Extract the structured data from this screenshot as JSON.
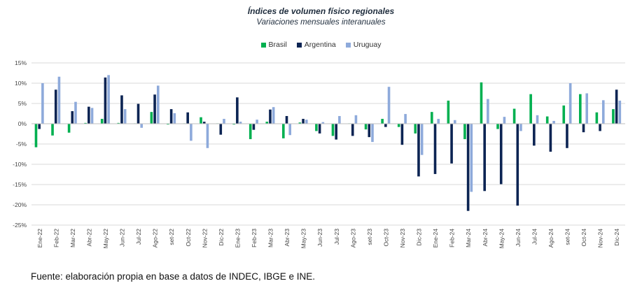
{
  "chart_data": {
    "type": "bar",
    "title": "Índices de volumen físico regionales",
    "subtitle": "Variaciones mensuales interanuales",
    "xlabel": "",
    "ylabel": "",
    "ylim": [
      -25,
      15
    ],
    "yticks": [
      "15%",
      "10%",
      "5%",
      "0%",
      "-5%",
      "-10%",
      "-15%",
      "-20%",
      "-25%"
    ],
    "grid": true,
    "legend": "top-center",
    "categories": [
      "Ene-22",
      "Feb-22",
      "Mar-22",
      "Abr-22",
      "May-22",
      "Jun-22",
      "Jul-22",
      "Ago-22",
      "set-22",
      "Oct-22",
      "Nov-22",
      "Dic-22",
      "Ene-23",
      "Feb-23",
      "Mar-23",
      "Abr-23",
      "May-23",
      "Jun-23",
      "Jul-23",
      "Ago-23",
      "set-23",
      "Oct-23",
      "Nov-23",
      "Dic-23",
      "Ene-24",
      "Feb-24",
      "Mar-24",
      "Abr-24",
      "May-24",
      "Jun-24",
      "Jul-24",
      "Ago-24",
      "set-24",
      "Oct-24",
      "Nov-24",
      "Dic-24"
    ],
    "series": [
      {
        "name": "Brasil",
        "color": "#00b050",
        "values": [
          -5.8,
          -2.9,
          -2.2,
          0.2,
          1.2,
          0.2,
          0.1,
          2.9,
          -0.2,
          0.1,
          1.6,
          0.1,
          -0.2,
          -3.8,
          0.5,
          -3.6,
          0.3,
          -1.8,
          -3.0,
          0.1,
          -1.4,
          1.2,
          -0.8,
          -2.4,
          2.9,
          5.7,
          -3.8,
          10.2,
          -1.3,
          3.7,
          7.3,
          1.8,
          4.5,
          7.3,
          2.8,
          3.6
        ]
      },
      {
        "name": "Argentina",
        "color": "#0c2453",
        "values": [
          -1.3,
          8.4,
          3.1,
          4.2,
          11.4,
          7.0,
          4.9,
          7.2,
          3.6,
          2.8,
          0.5,
          -2.7,
          6.5,
          -1.5,
          3.5,
          1.9,
          1.2,
          -2.4,
          -3.9,
          -3.0,
          -3.3,
          -0.8,
          -5.2,
          -13.0,
          -12.4,
          -9.8,
          -21.5,
          -16.6,
          -14.9,
          -20.2,
          -5.4,
          -6.9,
          -6.0,
          -2.1,
          -1.8,
          8.4
        ]
      },
      {
        "name": "Uruguay",
        "color": "#8eaadb",
        "values": [
          10.0,
          11.6,
          5.4,
          3.9,
          12.0,
          3.6,
          -1.0,
          9.4,
          2.6,
          -4.2,
          -6.0,
          1.2,
          0.5,
          1.0,
          4.1,
          -2.8,
          1.0,
          0.4,
          1.9,
          2.1,
          -4.5,
          9.1,
          2.4,
          -7.7,
          1.2,
          0.9,
          -16.8,
          6.1,
          1.7,
          -1.8,
          2.1,
          0.7,
          10.0,
          7.5,
          5.8,
          5.7
        ]
      }
    ]
  },
  "footer": {
    "source_text": "Fuente: elaboración propia en base a datos de INDEC, IBGE e INE."
  }
}
